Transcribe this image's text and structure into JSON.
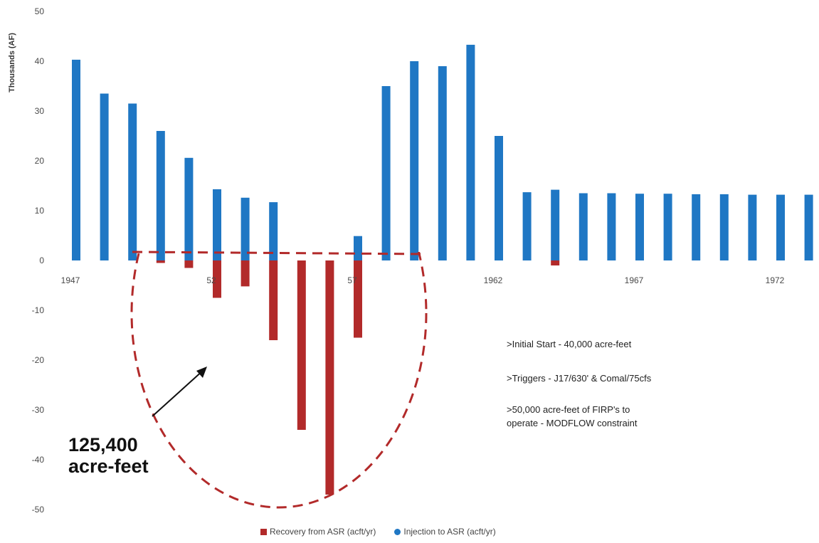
{
  "chart_data": {
    "type": "bar",
    "ylabel": "Thousands (AF)",
    "ylim": [
      -50,
      50
    ],
    "y_ticks": [
      "50",
      "40",
      "30",
      "20",
      "10",
      "0",
      "-10",
      "-20",
      "-30",
      "-40",
      "-50"
    ],
    "x_tick_labels": [
      {
        "index": 0,
        "label": "1947"
      },
      {
        "index": 5,
        "label": "52"
      },
      {
        "index": 10,
        "label": "57"
      },
      {
        "index": 15,
        "label": "1962"
      },
      {
        "index": 20,
        "label": "1967"
      },
      {
        "index": 25,
        "label": "1972"
      }
    ],
    "categories": [
      "1947",
      "1948",
      "1949",
      "1950",
      "1951",
      "1952",
      "1953",
      "1954",
      "1955",
      "1956",
      "1957",
      "1958",
      "1959",
      "1960",
      "1961",
      "1962",
      "1963",
      "1964",
      "1965",
      "1966",
      "1967",
      "1968",
      "1969",
      "1970",
      "1971",
      "1972",
      "1973"
    ],
    "series": [
      {
        "name": "Recovery from ASR (acft/yr)",
        "color": "#b22a2a",
        "values": [
          0,
          0,
          0,
          -0.5,
          -1.5,
          -7.5,
          -5.2,
          -16,
          -34,
          -47,
          -15.5,
          0,
          0,
          0,
          0,
          0,
          0,
          -1,
          0,
          0,
          0,
          0,
          0,
          0,
          0,
          0,
          0
        ]
      },
      {
        "name": "Injection to ASR (acft/yr)",
        "color": "#1f77c4",
        "values": [
          40.3,
          33.5,
          31.5,
          26,
          20.6,
          14.3,
          12.6,
          11.7,
          0,
          0,
          4.9,
          35,
          40,
          39,
          43.3,
          25,
          13.7,
          14.2,
          13.5,
          13.5,
          13.4,
          13.4,
          13.3,
          13.3,
          13.2,
          13.2,
          13.2
        ]
      }
    ]
  },
  "annotations": {
    "total_label_line1": "125,400",
    "total_label_line2": "acre-feet",
    "note1": ">Initial Start - 40,000 acre-feet",
    "note2": ">Triggers - J17/630' & Comal/75cfs",
    "note3_line1": ">50,000 acre-feet of FIRP's to",
    "note3_line2": "operate - MODFLOW constraint"
  },
  "colors": {
    "recovery": "#b22a2a",
    "injection": "#1f77c4",
    "dashed": "#b22a2a"
  }
}
